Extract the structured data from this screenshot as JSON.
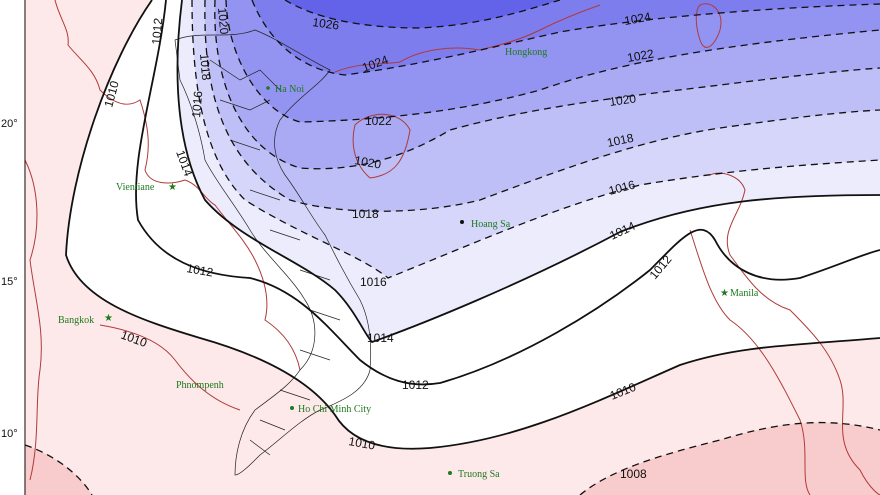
{
  "map": {
    "colors": {
      "low": "#f6c6c6",
      "neutral_low": "#fde9e9",
      "zero": "#ffffff",
      "high_max": "#4e4ee6",
      "coast": "#b03a3a",
      "city": "#1e7a1e"
    },
    "latitude_labels": [
      "20°",
      "15°",
      "10°"
    ],
    "isobars": {
      "i1008": "1008",
      "i1010a": "1010",
      "i1010b": "1010",
      "i1010c": "1010",
      "i1010d": "1010",
      "i1012a": "1012",
      "i1012b": "1012",
      "i1012c": "1012",
      "i1012d": "1012",
      "i1014a": "1014",
      "i1014b": "1014",
      "i1014c": "1014",
      "i1016a": "1016",
      "i1016b": "1016",
      "i1016c": "1016",
      "i1018a": "1018",
      "i1018b": "1018",
      "i1018c": "1018",
      "i1020a": "1020",
      "i1020b": "1020",
      "i1020c": "1020",
      "i1022a": "1022",
      "i1022b": "1022",
      "i1024a": "1024",
      "i1024b": "1024",
      "i1026": "1026"
    },
    "cities": {
      "hanoi": "Ha Noi",
      "hongkong": "Hongkong",
      "vientiane": "Vientiane",
      "hoangsa": "Hoang Sa",
      "manila": "Manila",
      "bangkok": "Bangkok",
      "phnompenh": "Phnompenh",
      "hcmc": "Ho Chi Minh City",
      "truongsa": "Truong Sa"
    }
  }
}
